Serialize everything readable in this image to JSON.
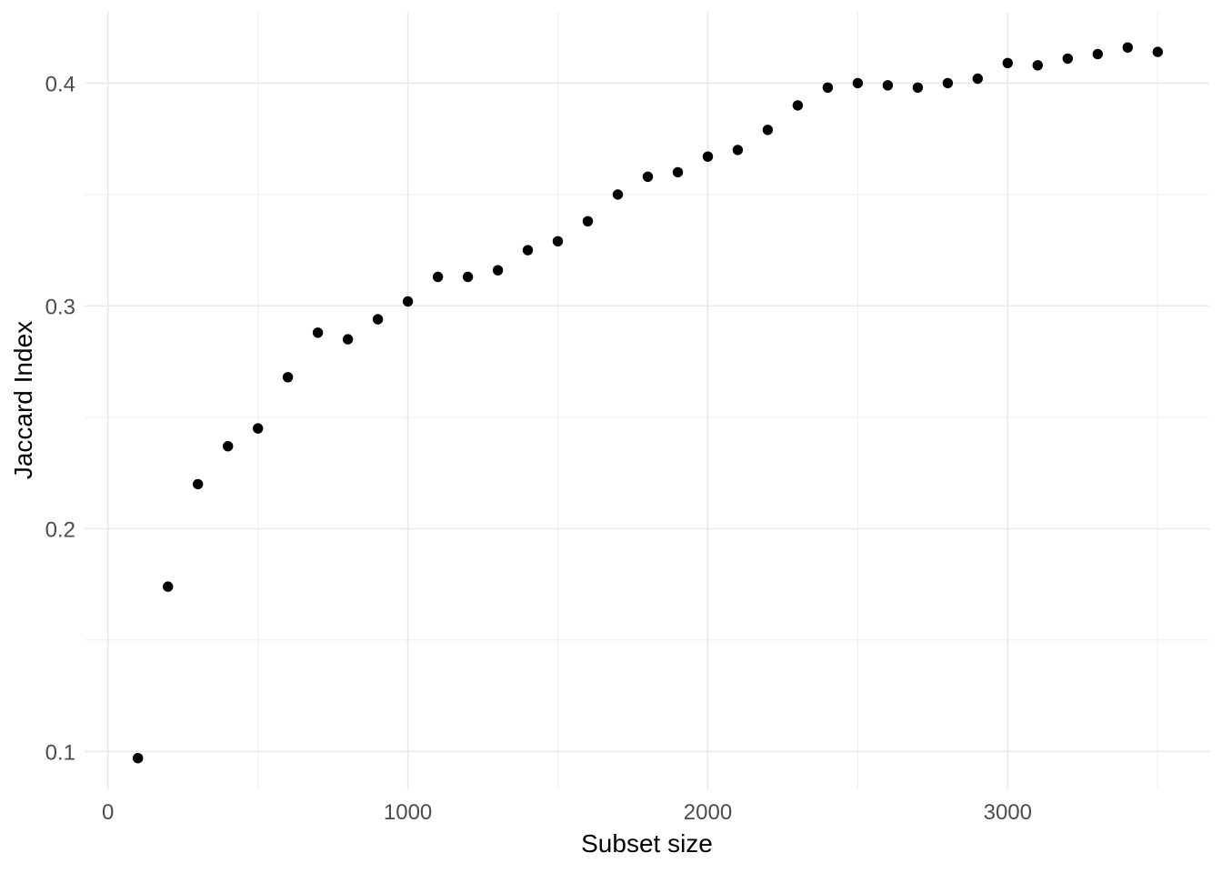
{
  "chart_data": {
    "type": "scatter",
    "title": "",
    "xlabel": "Subset size",
    "ylabel": "Jaccard Index",
    "x": [
      100,
      200,
      300,
      400,
      500,
      600,
      700,
      800,
      900,
      1000,
      1100,
      1200,
      1300,
      1400,
      1500,
      1600,
      1700,
      1800,
      1900,
      2000,
      2100,
      2200,
      2300,
      2400,
      2500,
      2600,
      2700,
      2800,
      2900,
      3000,
      3100,
      3200,
      3300,
      3400,
      3500
    ],
    "y": [
      0.097,
      0.174,
      0.22,
      0.237,
      0.245,
      0.268,
      0.288,
      0.285,
      0.294,
      0.302,
      0.313,
      0.313,
      0.316,
      0.325,
      0.329,
      0.338,
      0.35,
      0.358,
      0.36,
      0.367,
      0.37,
      0.379,
      0.39,
      0.398,
      0.4,
      0.399,
      0.398,
      0.4,
      0.402,
      0.409,
      0.408,
      0.411,
      0.413,
      0.416,
      0.414
    ],
    "xlim": [
      -78,
      3672
    ],
    "ylim": [
      0.083,
      0.432
    ],
    "x_major_ticks": [
      0,
      1000,
      2000,
      3000
    ],
    "x_minor_ticks": [
      500,
      1500,
      2500,
      3500
    ],
    "y_major_ticks": [
      0.1,
      0.2,
      0.3,
      0.4
    ],
    "y_minor_ticks": [
      0.15,
      0.25,
      0.35
    ],
    "x_tick_labels": [
      "0",
      "1000",
      "2000",
      "3000"
    ],
    "y_tick_labels": [
      "0.1",
      "0.2",
      "0.3",
      "0.4"
    ],
    "grid": "major-and-minor",
    "legend": "none",
    "colors": {
      "point": "#000000",
      "grid_major": "#E8E8E8",
      "grid_minor": "#F0F0F0",
      "tick_label": "#4D4D4D",
      "axis_title": "#000000",
      "background": "#FFFFFF"
    }
  }
}
